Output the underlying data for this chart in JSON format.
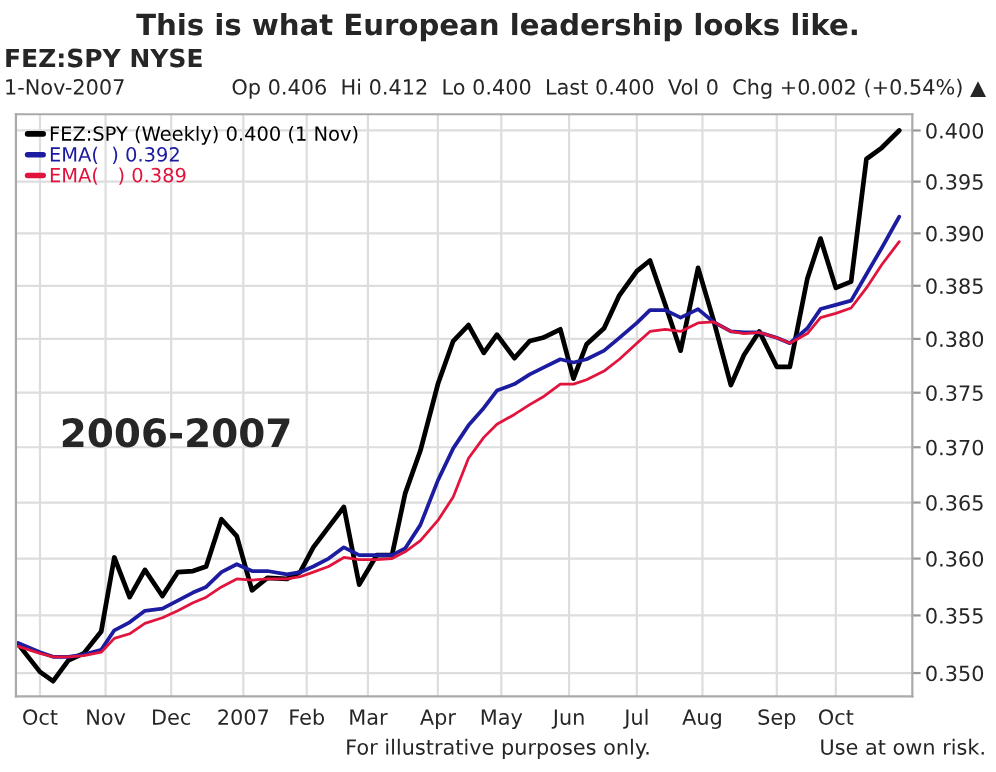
{
  "chart_data": {
    "type": "line",
    "title": "This is what European leadership looks like.",
    "annotations": [
      "FEZ:SPY NYSE",
      "1-Nov-2007",
      "Op 0.406  Hi 0.412  Lo 0.400  Last 0.400  Vol 0  Chg +0.002 (+0.54%) ▲",
      "2006-2007",
      "For illustrative purposes only.",
      "Use at own risk."
    ],
    "x": [
      "2006-09-22",
      "2006-10-02",
      "2006-10-08",
      "2006-10-15",
      "2006-10-22",
      "2006-10-30",
      "2006-11-05",
      "2006-11-12",
      "2006-11-19",
      "2006-11-27",
      "2006-12-04",
      "2006-12-11",
      "2006-12-17",
      "2006-12-24",
      "2006-12-31",
      "2007-01-07",
      "2007-01-14",
      "2007-01-23",
      "2007-01-29",
      "2007-02-04",
      "2007-02-11",
      "2007-02-18",
      "2007-02-25",
      "2007-03-05",
      "2007-03-12",
      "2007-03-18",
      "2007-03-25",
      "2007-04-02",
      "2007-04-09",
      "2007-04-16",
      "2007-04-23",
      "2007-04-29",
      "2007-05-07",
      "2007-05-14",
      "2007-05-20",
      "2007-05-28",
      "2007-06-03",
      "2007-06-09",
      "2007-06-17",
      "2007-06-24",
      "2007-07-02",
      "2007-07-08",
      "2007-07-15",
      "2007-07-22",
      "2007-07-30",
      "2007-08-06",
      "2007-08-14",
      "2007-08-20",
      "2007-08-27",
      "2007-09-04",
      "2007-09-10",
      "2007-09-18",
      "2007-09-24",
      "2007-10-01",
      "2007-10-08",
      "2007-10-15",
      "2007-10-22",
      "2007-10-30"
    ],
    "series": [
      {
        "name": "FEZ:SPY (Weekly) 0.400 (1 Nov)",
        "color": "#000000",
        "values": [
          0.3525,
          0.3501,
          0.3493,
          0.3511,
          0.3517,
          0.3536,
          0.3601,
          0.3566,
          0.359,
          0.3567,
          0.3588,
          0.3589,
          0.3593,
          0.3635,
          0.362,
          0.3572,
          0.3583,
          0.3582,
          0.3588,
          0.361,
          0.3628,
          0.3646,
          0.3577,
          0.3603,
          0.3603,
          0.3658,
          0.3697,
          0.3758,
          0.3798,
          0.3813,
          0.3787,
          0.3804,
          0.3782,
          0.3798,
          0.3801,
          0.3809,
          0.3763,
          0.3795,
          0.381,
          0.3841,
          0.3864,
          0.3874,
          0.3832,
          0.3789,
          0.3867,
          0.3818,
          0.3757,
          0.3785,
          0.3807,
          0.3774,
          0.3774,
          0.3857,
          0.3895,
          0.3848,
          0.3854,
          0.3972,
          0.3983,
          0.4
        ]
      },
      {
        "name": "EMA(  ) 0.392",
        "color": "#1c1ca0",
        "values": [
          0.3526,
          0.3518,
          0.3514,
          0.3514,
          0.3516,
          0.352,
          0.3537,
          0.3544,
          0.3554,
          0.3556,
          0.3563,
          0.357,
          0.3575,
          0.3588,
          0.3595,
          0.3589,
          0.3589,
          0.3586,
          0.3588,
          0.3593,
          0.36,
          0.361,
          0.3603,
          0.3603,
          0.3603,
          0.3609,
          0.363,
          0.367,
          0.3699,
          0.372,
          0.3736,
          0.3752,
          0.3758,
          0.3767,
          0.3773,
          0.3781,
          0.3778,
          0.3781,
          0.3789,
          0.3801,
          0.3815,
          0.3827,
          0.3827,
          0.382,
          0.3828,
          0.3816,
          0.3807,
          0.3806,
          0.3806,
          0.3801,
          0.3796,
          0.381,
          0.3828,
          0.3832,
          0.3836,
          0.3861,
          0.3886,
          0.3916
        ]
      },
      {
        "name": "EMA(   ) 0.389",
        "color": "#e0143c",
        "values": [
          0.3523,
          0.3517,
          0.3514,
          0.3514,
          0.3515,
          0.3518,
          0.353,
          0.3534,
          0.3543,
          0.3548,
          0.3554,
          0.3561,
          0.3566,
          0.3575,
          0.3582,
          0.3581,
          0.3582,
          0.3582,
          0.3584,
          0.3588,
          0.3593,
          0.3601,
          0.3599,
          0.3599,
          0.36,
          0.3606,
          0.3616,
          0.3634,
          0.3655,
          0.369,
          0.3709,
          0.3721,
          0.373,
          0.3739,
          0.3746,
          0.3758,
          0.3758,
          0.3762,
          0.377,
          0.3781,
          0.3796,
          0.3807,
          0.3809,
          0.3807,
          0.3815,
          0.3816,
          0.3807,
          0.3805,
          0.3806,
          0.3801,
          0.3796,
          0.3805,
          0.382,
          0.3824,
          0.3829,
          0.3848,
          0.387,
          0.3892
        ]
      }
    ],
    "xlim": [
      "2006-09-21",
      "2007-11-05"
    ],
    "xticks": [
      {
        "value": "2006-10-02",
        "label": "Oct"
      },
      {
        "value": "2006-11-01",
        "label": "Nov"
      },
      {
        "value": "2006-12-01",
        "label": "Dec"
      },
      {
        "value": "2007-01-03",
        "label": "2007"
      },
      {
        "value": "2007-02-01",
        "label": "Feb"
      },
      {
        "value": "2007-03-01",
        "label": "Mar"
      },
      {
        "value": "2007-04-02",
        "label": "Apr"
      },
      {
        "value": "2007-05-01",
        "label": "May"
      },
      {
        "value": "2007-06-01",
        "label": "Jun"
      },
      {
        "value": "2007-07-02",
        "label": "Jul"
      },
      {
        "value": "2007-08-01",
        "label": "Aug"
      },
      {
        "value": "2007-09-04",
        "label": "Sep"
      },
      {
        "value": "2007-10-01",
        "label": "Oct"
      }
    ],
    "ylim": [
      0.348,
      0.4016
    ],
    "yticks": [
      {
        "value": 0.35,
        "label": "0.350"
      },
      {
        "value": 0.355,
        "label": "0.355"
      },
      {
        "value": 0.36,
        "label": "0.360"
      },
      {
        "value": 0.365,
        "label": "0.365"
      },
      {
        "value": 0.37,
        "label": "0.370"
      },
      {
        "value": 0.375,
        "label": "0.375"
      },
      {
        "value": 0.38,
        "label": "0.380"
      },
      {
        "value": 0.385,
        "label": "0.385"
      },
      {
        "value": 0.39,
        "label": "0.390"
      },
      {
        "value": 0.395,
        "label": "0.395"
      },
      {
        "value": 0.4,
        "label": "0.400"
      }
    ],
    "log": true,
    "grid": true,
    "legend": "top left"
  }
}
